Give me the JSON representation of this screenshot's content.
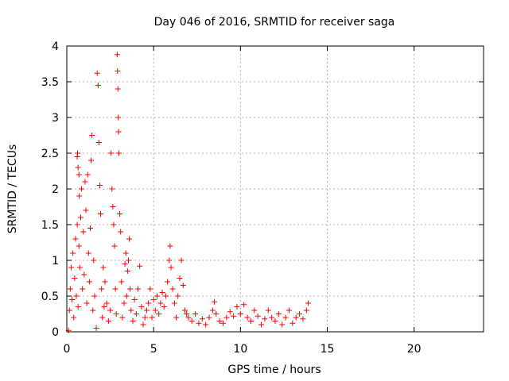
{
  "chart_data": {
    "type": "scatter",
    "title": "Day 046 of 2016, SRMTID for receiver saga",
    "xlabel": "GPS time / hours",
    "ylabel": "SRMTID / TECUs",
    "xlim": [
      0,
      24
    ],
    "ylim": [
      0,
      4
    ],
    "xticks": [
      0,
      5,
      10,
      15,
      20
    ],
    "yticks": [
      0,
      0.5,
      1,
      1.5,
      2,
      2.5,
      3,
      3.5,
      4
    ],
    "xtick_labels": [
      "0",
      "5",
      "10",
      "15",
      "20"
    ],
    "ytick_labels": [
      "0",
      "0.5",
      "1",
      "1.5",
      "2",
      "2.5",
      "3",
      "3.5",
      "4"
    ],
    "grid": true,
    "marker": "+",
    "color": "#ff0000",
    "series": [
      {
        "name": "SRMTID",
        "points": [
          [
            0.1,
            0.02
          ],
          [
            0.15,
            0.3
          ],
          [
            0.2,
            0.6
          ],
          [
            0.25,
            0.9
          ],
          [
            0.3,
            0.45
          ],
          [
            0.35,
            1.1
          ],
          [
            0.4,
            0.2
          ],
          [
            0.45,
            0.75
          ],
          [
            0.5,
            1.3
          ],
          [
            0.55,
            0.5
          ],
          [
            0.6,
            1.5
          ],
          [
            0.65,
            0.35
          ],
          [
            0.7,
            1.2
          ],
          [
            0.6,
            2.45
          ],
          [
            0.62,
            2.5
          ],
          [
            0.65,
            2.3
          ],
          [
            0.7,
            2.2
          ],
          [
            0.72,
            1.9
          ],
          [
            0.75,
            0.9
          ],
          [
            0.8,
            1.6
          ],
          [
            0.85,
            2.0
          ],
          [
            0.9,
            0.6
          ],
          [
            0.95,
            1.4
          ],
          [
            1.0,
            0.8
          ],
          [
            1.05,
            2.1
          ],
          [
            1.1,
            1.7
          ],
          [
            1.15,
            0.4
          ],
          [
            1.2,
            2.2
          ],
          [
            1.25,
            1.1
          ],
          [
            1.3,
            0.7
          ],
          [
            1.35,
            1.45
          ],
          [
            1.4,
            2.4
          ],
          [
            1.45,
            2.75
          ],
          [
            1.5,
            0.3
          ],
          [
            1.55,
            1.0
          ],
          [
            1.6,
            0.5
          ],
          [
            1.7,
            0.05
          ],
          [
            1.75,
            3.62
          ],
          [
            1.8,
            3.45
          ],
          [
            1.85,
            2.65
          ],
          [
            1.9,
            2.05
          ],
          [
            1.95,
            1.65
          ],
          [
            2.0,
            0.6
          ],
          [
            2.05,
            0.2
          ],
          [
            2.1,
            0.9
          ],
          [
            2.15,
            0.35
          ],
          [
            2.2,
            0.7
          ],
          [
            2.3,
            0.4
          ],
          [
            2.4,
            0.15
          ],
          [
            2.5,
            0.3
          ],
          [
            2.55,
            2.5
          ],
          [
            2.6,
            2.0
          ],
          [
            2.65,
            1.75
          ],
          [
            2.7,
            1.5
          ],
          [
            2.75,
            1.2
          ],
          [
            2.8,
            0.6
          ],
          [
            2.85,
            0.25
          ],
          [
            2.9,
            3.88
          ],
          [
            2.92,
            3.65
          ],
          [
            2.94,
            3.4
          ],
          [
            2.96,
            3.0
          ],
          [
            2.98,
            2.8
          ],
          [
            3.0,
            2.5
          ],
          [
            3.05,
            1.65
          ],
          [
            3.1,
            1.4
          ],
          [
            3.15,
            0.7
          ],
          [
            3.2,
            0.2
          ],
          [
            3.3,
            0.4
          ],
          [
            3.35,
            0.95
          ],
          [
            3.4,
            1.1
          ],
          [
            3.45,
            0.5
          ],
          [
            3.5,
            0.85
          ],
          [
            3.55,
            1.0
          ],
          [
            3.6,
            1.3
          ],
          [
            3.65,
            0.6
          ],
          [
            3.7,
            0.3
          ],
          [
            3.8,
            0.15
          ],
          [
            3.9,
            0.45
          ],
          [
            4.0,
            0.25
          ],
          [
            4.1,
            0.6
          ],
          [
            4.2,
            0.92
          ],
          [
            4.3,
            0.35
          ],
          [
            4.4,
            0.1
          ],
          [
            4.5,
            0.2
          ],
          [
            4.6,
            0.3
          ],
          [
            4.7,
            0.4
          ],
          [
            4.8,
            0.6
          ],
          [
            4.9,
            0.2
          ],
          [
            5.0,
            0.45
          ],
          [
            5.1,
            0.3
          ],
          [
            5.2,
            0.5
          ],
          [
            5.3,
            0.25
          ],
          [
            5.4,
            0.4
          ],
          [
            5.5,
            0.55
          ],
          [
            5.6,
            0.35
          ],
          [
            5.7,
            0.5
          ],
          [
            5.8,
            0.7
          ],
          [
            5.9,
            1.0
          ],
          [
            5.95,
            1.2
          ],
          [
            6.0,
            0.9
          ],
          [
            6.1,
            0.6
          ],
          [
            6.2,
            0.4
          ],
          [
            6.3,
            0.2
          ],
          [
            6.4,
            0.5
          ],
          [
            6.5,
            0.75
          ],
          [
            6.6,
            1.0
          ],
          [
            6.7,
            0.65
          ],
          [
            6.8,
            0.3
          ],
          [
            6.9,
            0.25
          ],
          [
            7.0,
            0.2
          ],
          [
            7.2,
            0.15
          ],
          [
            7.4,
            0.25
          ],
          [
            7.6,
            0.12
          ],
          [
            7.8,
            0.18
          ],
          [
            8.0,
            0.1
          ],
          [
            8.2,
            0.2
          ],
          [
            8.4,
            0.3
          ],
          [
            8.5,
            0.42
          ],
          [
            8.6,
            0.25
          ],
          [
            8.8,
            0.15
          ],
          [
            9.0,
            0.12
          ],
          [
            9.2,
            0.2
          ],
          [
            9.4,
            0.28
          ],
          [
            9.6,
            0.22
          ],
          [
            9.8,
            0.35
          ],
          [
            10.0,
            0.25
          ],
          [
            10.2,
            0.38
          ],
          [
            10.4,
            0.2
          ],
          [
            10.6,
            0.15
          ],
          [
            10.8,
            0.3
          ],
          [
            11.0,
            0.22
          ],
          [
            11.2,
            0.1
          ],
          [
            11.4,
            0.18
          ],
          [
            11.6,
            0.3
          ],
          [
            11.8,
            0.2
          ],
          [
            12.0,
            0.15
          ],
          [
            12.2,
            0.25
          ],
          [
            12.4,
            0.1
          ],
          [
            12.6,
            0.2
          ],
          [
            12.8,
            0.3
          ],
          [
            13.0,
            0.12
          ],
          [
            13.2,
            0.2
          ],
          [
            13.4,
            0.25
          ],
          [
            13.6,
            0.18
          ],
          [
            13.8,
            0.3
          ],
          [
            13.9,
            0.4
          ]
        ]
      }
    ]
  }
}
